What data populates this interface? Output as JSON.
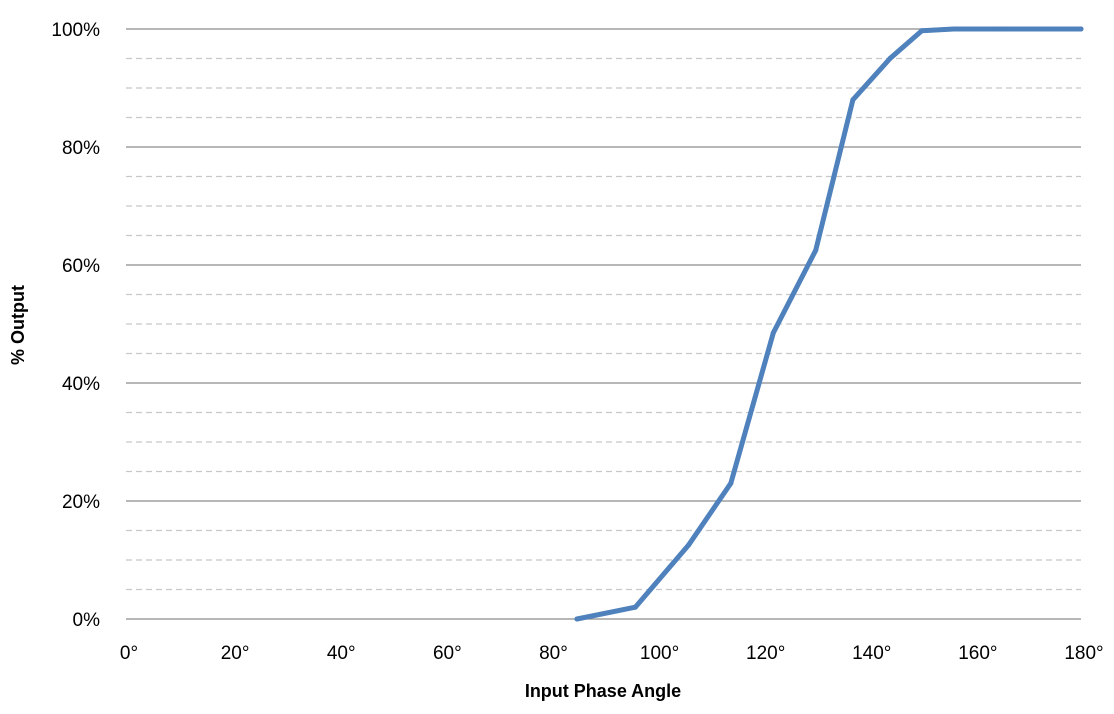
{
  "chart_data": {
    "type": "line",
    "title": "",
    "xlabel": "Input Phase Angle",
    "ylabel": "% Output",
    "xlim": [
      0,
      180
    ],
    "ylim": [
      0,
      100
    ],
    "x_ticks": [
      0,
      20,
      40,
      60,
      80,
      100,
      120,
      140,
      160,
      180
    ],
    "x_tick_labels": [
      "0°",
      "20°",
      "40°",
      "60°",
      "80°",
      "100°",
      "120°",
      "140°",
      "160°",
      "180°"
    ],
    "y_ticks": [
      0,
      20,
      40,
      60,
      80,
      100
    ],
    "y_tick_labels": [
      "0%",
      "20%",
      "40%",
      "60%",
      "80%",
      "100%"
    ],
    "major_grid": true,
    "minor_grid_step": 5,
    "legend": "none",
    "series": [
      {
        "color": "#4f81bd",
        "x": [
          85,
          96,
          106,
          114,
          122,
          130,
          137,
          144,
          150,
          156,
          165,
          180
        ],
        "y": [
          0,
          2,
          12.5,
          23,
          48.5,
          62.5,
          88,
          95,
          99.7,
          100,
          100,
          100
        ]
      }
    ]
  }
}
